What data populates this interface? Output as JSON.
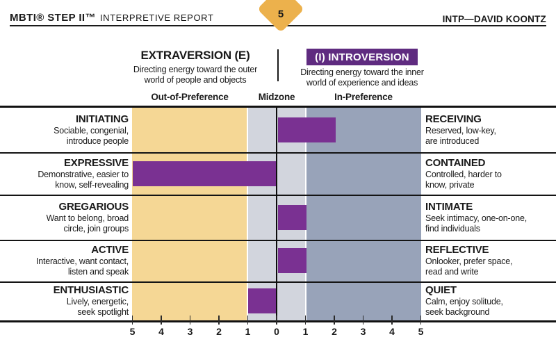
{
  "header": {
    "brand": "MBTI® STEP II™",
    "title_rest": "INTERPRETIVE REPORT",
    "page_number": "5",
    "person": "INTP—DAVID KOONTZ"
  },
  "poles": {
    "left": {
      "title": "EXTRAVERSION (E)",
      "description": "Directing energy toward the outer\nworld of people and objects"
    },
    "right": {
      "title": "(I) INTROVERSION",
      "description": "Directing energy toward the inner\nworld of experience and ideas"
    }
  },
  "zone_headers": {
    "out": "Out-of-Preference",
    "mid": "Midzone",
    "in": "In-Preference"
  },
  "colors": {
    "bar_purple": "#7a3192",
    "header_purple": "#5f2b80",
    "out_of_preference_band": "#f5d795",
    "midzone_band": "#d2d5dd",
    "in_preference_band": "#98a3b9",
    "diamond_gold": "#ecb14c"
  },
  "chart_data": {
    "type": "bar",
    "orientation": "horizontal",
    "axis": {
      "min": -5,
      "max": 5,
      "tick_labels": [
        "5",
        "4",
        "3",
        "2",
        "1",
        "0",
        "1",
        "2",
        "3",
        "4",
        "5"
      ]
    },
    "zones": [
      {
        "label": "Out-of-Preference",
        "range": [
          -5,
          -1
        ]
      },
      {
        "label": "Midzone",
        "range": [
          -1,
          1
        ]
      },
      {
        "label": "In-Preference",
        "range": [
          1,
          5
        ]
      }
    ],
    "rows": [
      {
        "left_name": "INITIATING",
        "left_desc": "Sociable, congenial,\nintroduce people",
        "right_name": "RECEIVING",
        "right_desc": "Reserved, low-key,\nare introduced",
        "value": 2
      },
      {
        "left_name": "EXPRESSIVE",
        "left_desc": "Demonstrative, easier to\nknow, self-revealing",
        "right_name": "CONTAINED",
        "right_desc": "Controlled, harder to\nknow, private",
        "value": -5
      },
      {
        "left_name": "GREGARIOUS",
        "left_desc": "Want to belong, broad\ncircle, join groups",
        "right_name": "INTIMATE",
        "right_desc": "Seek intimacy, one-on-one,\nfind individuals",
        "value": 1
      },
      {
        "left_name": "ACTIVE",
        "left_desc": "Interactive, want contact,\nlisten and speak",
        "right_name": "REFLECTIVE",
        "right_desc": "Onlooker, prefer space,\nread and write",
        "value": 1
      },
      {
        "left_name": "ENTHUSIASTIC",
        "left_desc": "Lively, energetic,\nseek spotlight",
        "right_name": "QUIET",
        "right_desc": "Calm, enjoy solitude,\nseek background",
        "value": -1
      }
    ]
  }
}
